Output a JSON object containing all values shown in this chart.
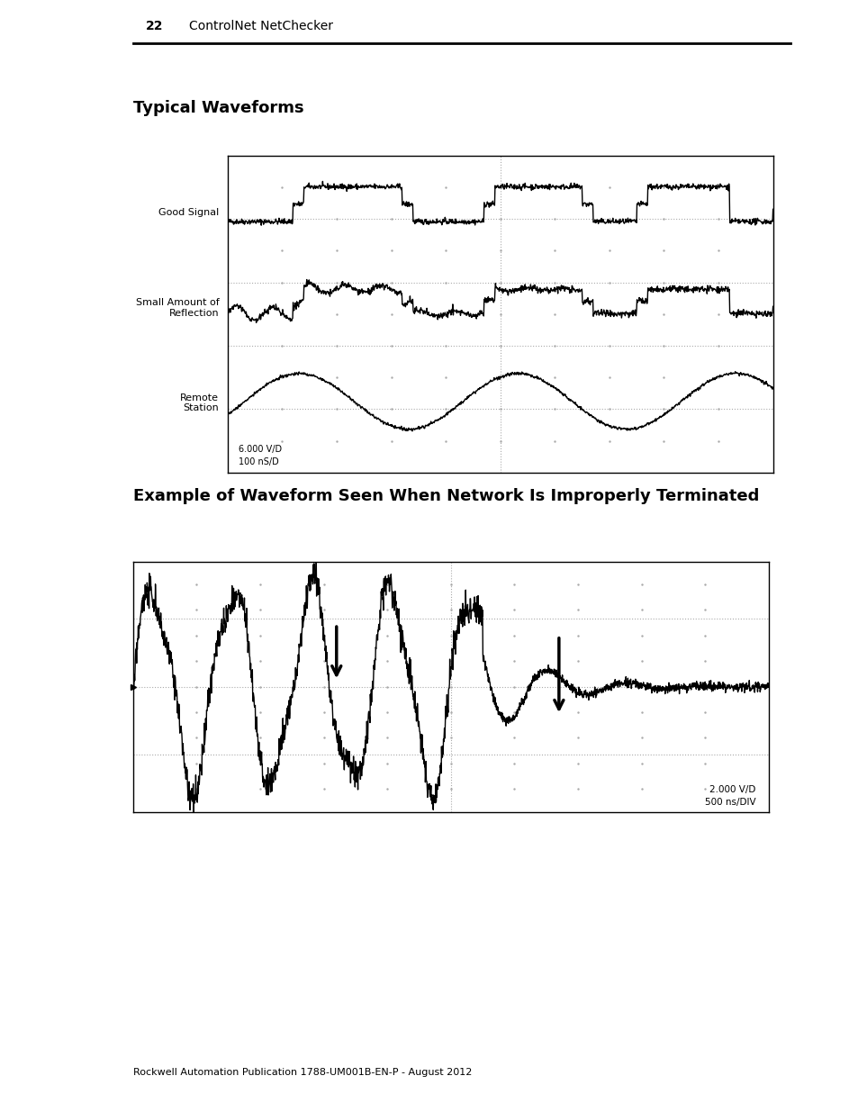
{
  "page_number": "22",
  "page_header": "ControlNet NetChecker",
  "title1": "Typical Waveforms",
  "title2": "Example of Waveform Seen When Network Is Improperly Terminated",
  "label_good_signal": "Good Signal",
  "label_small": "Small Amount of\nReflection",
  "label_remote": "Remote\nStation",
  "scale1_line1": "6.000 V/D",
  "scale1_line2": "100 nS/D",
  "scale2_line1": "2.000 V/D",
  "scale2_line2": "500 ns/DIV",
  "footer": "Rockwell Automation Publication 1788-UM001B-EN-P - August 2012",
  "bg_color": "#ffffff",
  "line_color": "#000000",
  "grid_color": "#aaaaaa",
  "box_color": "#000000"
}
